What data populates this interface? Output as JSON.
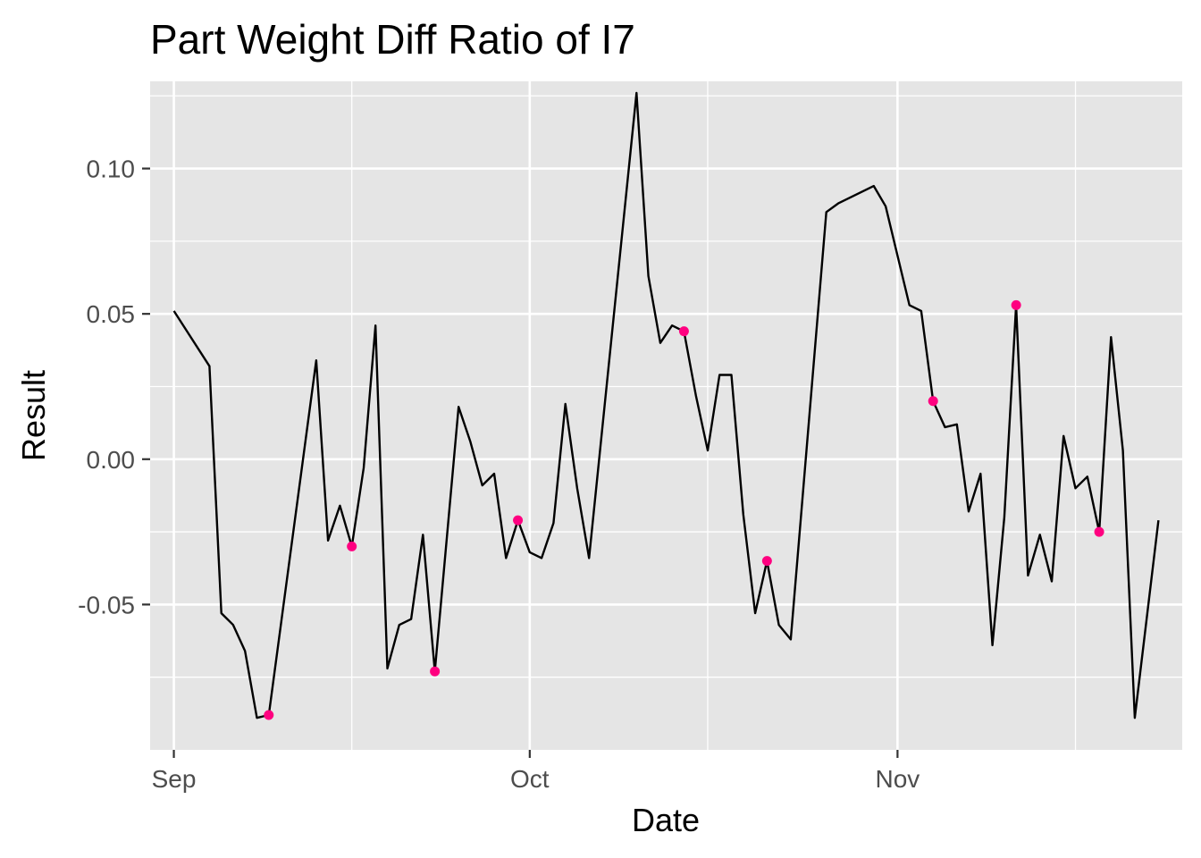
{
  "chart_data": {
    "type": "line",
    "title": "Part Weight Diff Ratio of I7",
    "xlabel": "Date",
    "ylabel": "Result",
    "x_ticks": [
      "Sep",
      "Oct",
      "Nov"
    ],
    "y_ticks": [
      "0.10",
      "0.05",
      "0.00",
      "-0.05"
    ],
    "ylim": [
      -0.1,
      0.13
    ],
    "xlim": [
      "2023-08-30",
      "2023-11-25"
    ],
    "grid": true,
    "series": [
      {
        "values": [
          {
            "x": "2023-09-01",
            "y": 0.051
          },
          {
            "x": "2023-09-04",
            "y": 0.032
          },
          {
            "x": "2023-09-05",
            "y": -0.053
          },
          {
            "x": "2023-09-06",
            "y": -0.057
          },
          {
            "x": "2023-09-07",
            "y": -0.066
          },
          {
            "x": "2023-09-08",
            "y": -0.089
          },
          {
            "x": "2023-09-09",
            "y": -0.088
          },
          {
            "x": "2023-09-13",
            "y": 0.034
          },
          {
            "x": "2023-09-14",
            "y": -0.028
          },
          {
            "x": "2023-09-15",
            "y": -0.016
          },
          {
            "x": "2023-09-16",
            "y": -0.03
          },
          {
            "x": "2023-09-17",
            "y": -0.003
          },
          {
            "x": "2023-09-18",
            "y": 0.046
          },
          {
            "x": "2023-09-19",
            "y": -0.072
          },
          {
            "x": "2023-09-20",
            "y": -0.057
          },
          {
            "x": "2023-09-21",
            "y": -0.055
          },
          {
            "x": "2023-09-22",
            "y": -0.026
          },
          {
            "x": "2023-09-23",
            "y": -0.073
          },
          {
            "x": "2023-09-25",
            "y": 0.018
          },
          {
            "x": "2023-09-26",
            "y": 0.006
          },
          {
            "x": "2023-09-27",
            "y": -0.009
          },
          {
            "x": "2023-09-28",
            "y": -0.005
          },
          {
            "x": "2023-09-29",
            "y": -0.034
          },
          {
            "x": "2023-09-30",
            "y": -0.021
          },
          {
            "x": "2023-10-01",
            "y": -0.032
          },
          {
            "x": "2023-10-02",
            "y": -0.034
          },
          {
            "x": "2023-10-03",
            "y": -0.022
          },
          {
            "x": "2023-10-04",
            "y": 0.019
          },
          {
            "x": "2023-10-05",
            "y": -0.01
          },
          {
            "x": "2023-10-06",
            "y": -0.034
          },
          {
            "x": "2023-10-10",
            "y": 0.126
          },
          {
            "x": "2023-10-11",
            "y": 0.063
          },
          {
            "x": "2023-10-12",
            "y": 0.04
          },
          {
            "x": "2023-10-13",
            "y": 0.046
          },
          {
            "x": "2023-10-14",
            "y": 0.044
          },
          {
            "x": "2023-10-15",
            "y": 0.022
          },
          {
            "x": "2023-10-16",
            "y": 0.003
          },
          {
            "x": "2023-10-17",
            "y": 0.029
          },
          {
            "x": "2023-10-18",
            "y": 0.029
          },
          {
            "x": "2023-10-19",
            "y": -0.019
          },
          {
            "x": "2023-10-20",
            "y": -0.053
          },
          {
            "x": "2023-10-21",
            "y": -0.035
          },
          {
            "x": "2023-10-22",
            "y": -0.057
          },
          {
            "x": "2023-10-23",
            "y": -0.062
          },
          {
            "x": "2023-10-26",
            "y": 0.085
          },
          {
            "x": "2023-10-27",
            "y": 0.088
          },
          {
            "x": "2023-10-30",
            "y": 0.094
          },
          {
            "x": "2023-10-31",
            "y": 0.087
          },
          {
            "x": "2023-11-02",
            "y": 0.053
          },
          {
            "x": "2023-11-03",
            "y": 0.051
          },
          {
            "x": "2023-11-04",
            "y": 0.02
          },
          {
            "x": "2023-11-05",
            "y": 0.011
          },
          {
            "x": "2023-11-06",
            "y": 0.012
          },
          {
            "x": "2023-11-07",
            "y": -0.018
          },
          {
            "x": "2023-11-08",
            "y": -0.005
          },
          {
            "x": "2023-11-09",
            "y": -0.064
          },
          {
            "x": "2023-11-10",
            "y": -0.02
          },
          {
            "x": "2023-11-11",
            "y": 0.053
          },
          {
            "x": "2023-11-12",
            "y": -0.04
          },
          {
            "x": "2023-11-13",
            "y": -0.026
          },
          {
            "x": "2023-11-14",
            "y": -0.042
          },
          {
            "x": "2023-11-15",
            "y": 0.008
          },
          {
            "x": "2023-11-16",
            "y": -0.01
          },
          {
            "x": "2023-11-17",
            "y": -0.006
          },
          {
            "x": "2023-11-18",
            "y": -0.025
          },
          {
            "x": "2023-11-19",
            "y": 0.042
          },
          {
            "x": "2023-11-20",
            "y": 0.003
          },
          {
            "x": "2023-11-21",
            "y": -0.089
          },
          {
            "x": "2023-11-23",
            "y": -0.021
          }
        ],
        "color": "#000000"
      }
    ],
    "highlighted_points": [
      {
        "x": "2023-09-09",
        "y": -0.088
      },
      {
        "x": "2023-09-16",
        "y": -0.03
      },
      {
        "x": "2023-09-23",
        "y": -0.073
      },
      {
        "x": "2023-09-30",
        "y": -0.021
      },
      {
        "x": "2023-10-14",
        "y": 0.044
      },
      {
        "x": "2023-10-21",
        "y": -0.035
      },
      {
        "x": "2023-11-04",
        "y": 0.02
      },
      {
        "x": "2023-11-11",
        "y": 0.053
      },
      {
        "x": "2023-11-18",
        "y": -0.025
      }
    ],
    "highlight_color": "#ff0080",
    "panel_background": "#e5e5e5",
    "grid_color": "#ffffff"
  }
}
